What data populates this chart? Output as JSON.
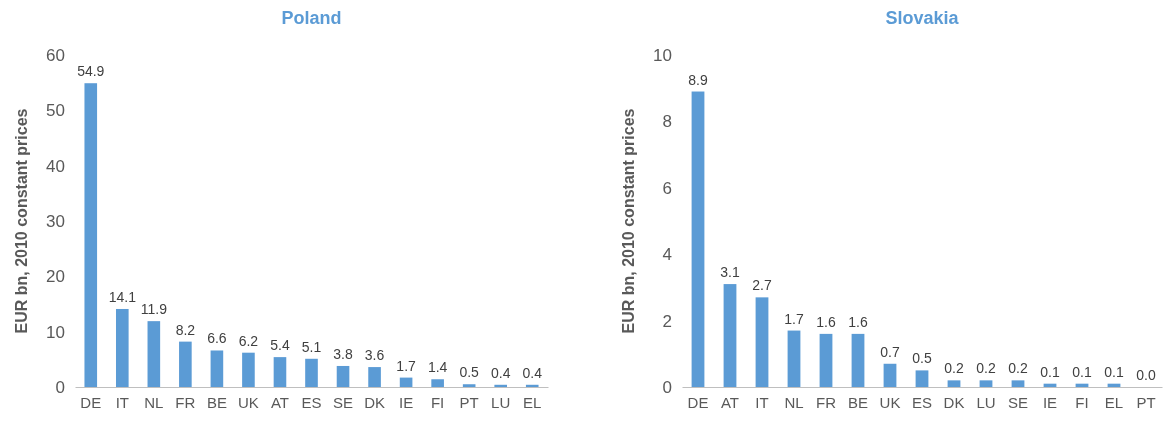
{
  "chart_data": [
    {
      "type": "bar",
      "title": "Poland",
      "ylabel": "EUR bn, 2010 constant prices",
      "categories": [
        "DE",
        "IT",
        "NL",
        "FR",
        "BE",
        "UK",
        "AT",
        "ES",
        "SE",
        "DK",
        "IE",
        "FI",
        "PT",
        "LU",
        "EL"
      ],
      "values": [
        54.9,
        14.1,
        11.9,
        8.2,
        6.6,
        6.2,
        5.4,
        5.1,
        3.8,
        3.6,
        1.7,
        1.4,
        0.5,
        0.4,
        0.4
      ],
      "color": "#5b9bd5",
      "ylim": [
        0,
        60
      ],
      "yticks": [
        0,
        10,
        20,
        30,
        40,
        50,
        60
      ],
      "data_labels": true
    },
    {
      "type": "bar",
      "title": "Slovakia",
      "ylabel": "EUR bn, 2010 constant prices",
      "categories": [
        "DE",
        "AT",
        "IT",
        "NL",
        "FR",
        "BE",
        "UK",
        "ES",
        "DK",
        "LU",
        "SE",
        "IE",
        "FI",
        "EL",
        "PT"
      ],
      "values": [
        8.9,
        3.1,
        2.7,
        1.7,
        1.6,
        1.6,
        0.7,
        0.5,
        0.2,
        0.2,
        0.2,
        0.1,
        0.1,
        0.1,
        0.0
      ],
      "value_labels": [
        "8.9",
        "3.1",
        "2.7",
        "1.7",
        "1.6",
        "1.6",
        "0.7",
        "0.5",
        "0.2",
        "0.2",
        "0.2",
        "0.1",
        "0.1",
        "0.1",
        "0.0"
      ],
      "color": "#5b9bd5",
      "ylim": [
        0,
        10
      ],
      "yticks": [
        0,
        2,
        4,
        6,
        8,
        10
      ]
    }
  ]
}
